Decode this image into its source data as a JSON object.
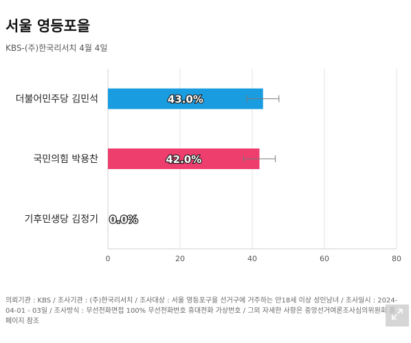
{
  "title": "서울 영등포을",
  "subtitle": "KBS-(주)한국리서치 4월 4일",
  "chart_data": {
    "type": "bar",
    "orientation": "horizontal",
    "categories": [
      "더불어민주당 김민석",
      "국민의힘 박용찬",
      "기후민생당 김정기"
    ],
    "values": [
      43.0,
      42.0,
      0.0
    ],
    "value_labels": [
      "43.0%",
      "42.0%",
      "0.0%"
    ],
    "error_bars": [
      [
        38.6,
        47.4
      ],
      [
        37.6,
        46.4
      ],
      null
    ],
    "colors": [
      "#1a9de0",
      "#ee3e6e",
      "#999999"
    ],
    "xlim": [
      0,
      80
    ],
    "xticks": [
      0,
      20,
      40,
      60,
      80
    ],
    "grid": true
  },
  "footnote": "의뢰기관 : KBS / 조사기관 : (주)한국리서치 / 조사대상 : 서울 영등포구을 선거구에 거주하는 만18세 이상 성인남녀 / 조사일시 : 2024-04-01 - 03일 / 조사방식 : 무선전화면접 100% 무선전화번호 휴대전화 가상번호 / 그외 자세한 사항은 중앙선거여론조사심의위원회 홈페이지 참조",
  "expand_icon": "expand-icon"
}
